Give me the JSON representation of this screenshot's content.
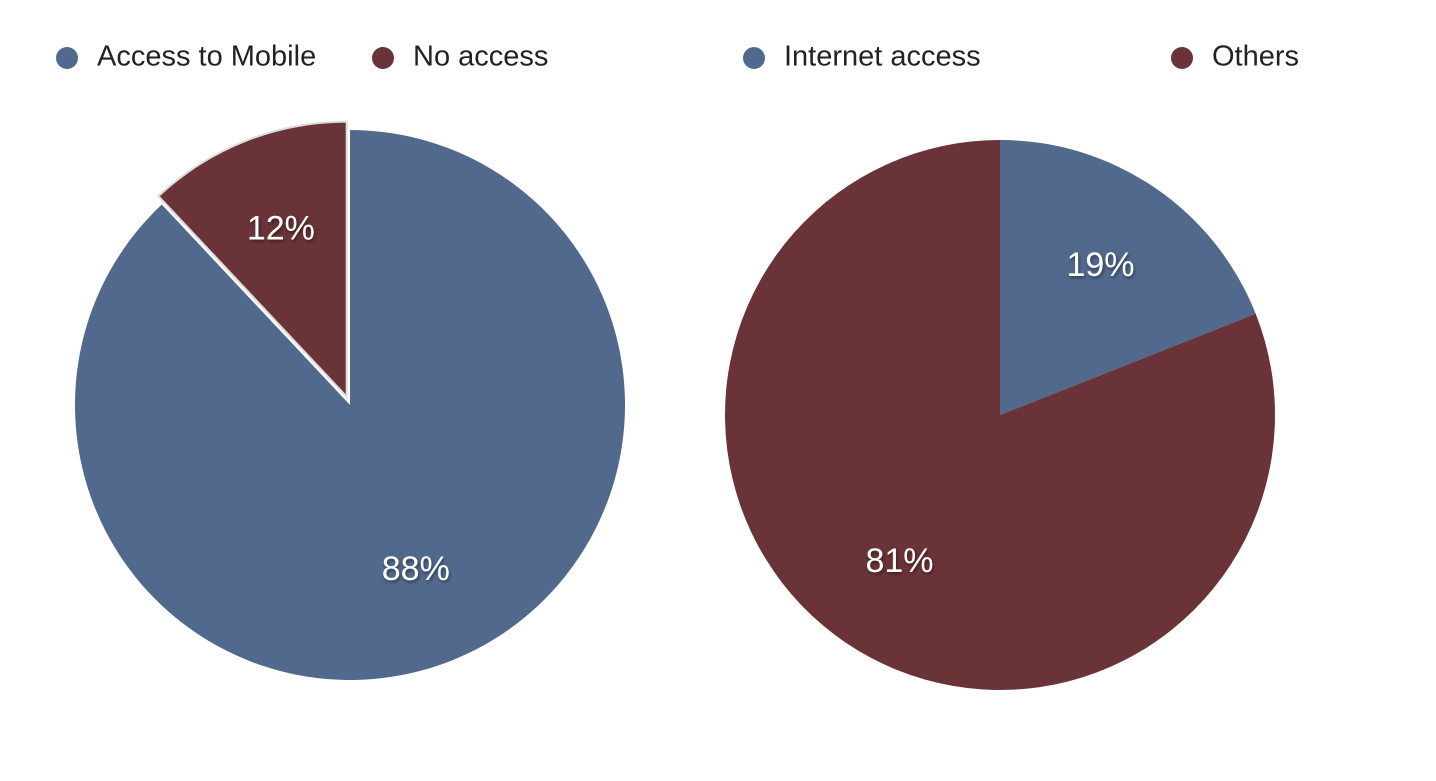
{
  "chart_data": [
    {
      "type": "pie",
      "categories": [
        "Access to Mobile",
        "No access"
      ],
      "values": [
        88,
        12
      ],
      "value_labels": [
        "88%",
        "12%"
      ],
      "colors": [
        "#51698c",
        "#6a3337"
      ]
    },
    {
      "type": "pie",
      "categories": [
        "Internet access",
        "Others"
      ],
      "values": [
        19,
        81
      ],
      "value_labels": [
        "19%",
        "81%"
      ],
      "colors": [
        "#51698c",
        "#6a3337"
      ]
    }
  ]
}
